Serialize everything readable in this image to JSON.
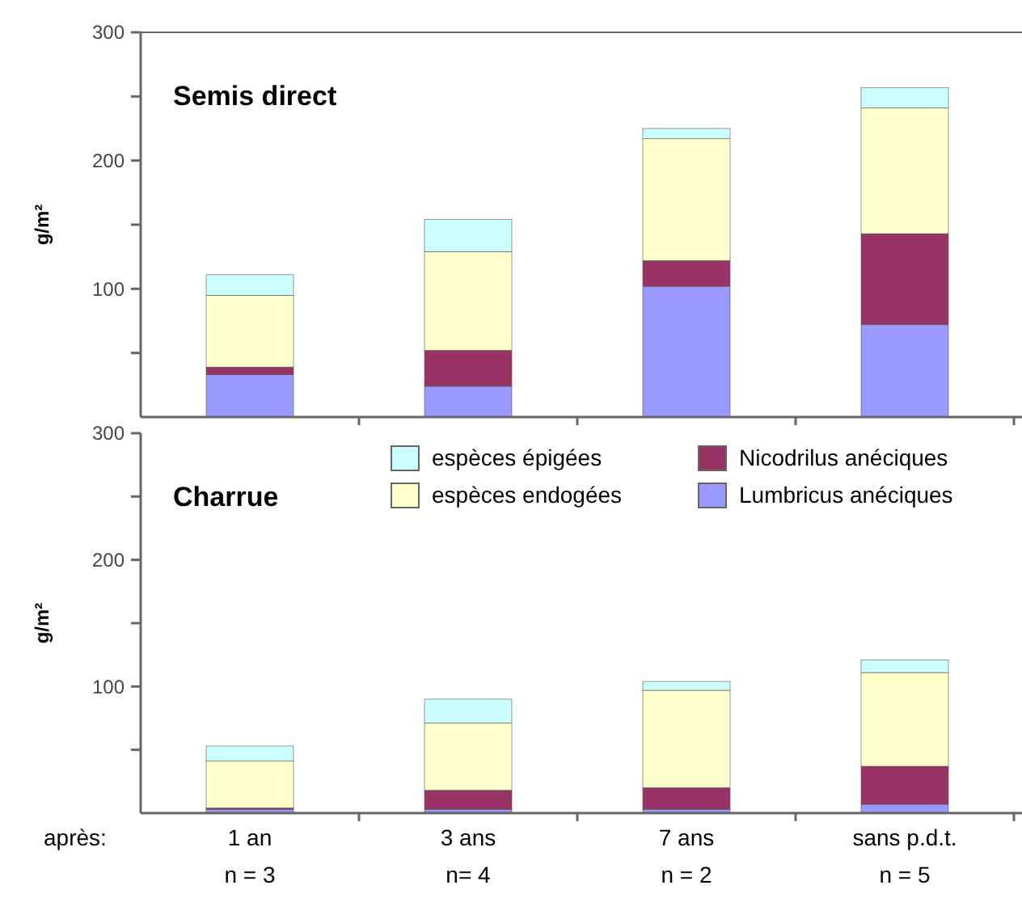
{
  "chart_data": [
    {
      "type": "bar",
      "stacked": true,
      "title": "Semis direct",
      "ylabel": "g/m²",
      "categories": [
        null,
        null,
        null,
        null
      ],
      "ylim": [
        0,
        300
      ],
      "yticks": [
        {
          "value": 50,
          "label": null
        },
        100,
        {
          "value": 150,
          "label": null
        },
        200,
        {
          "value": 250,
          "label": null
        },
        300
      ],
      "tick_labels": "y",
      "legend": false,
      "series": [
        {
          "color": "#9999ff",
          "values": [
            33,
            24,
            102,
            72
          ]
        },
        {
          "color": "#993366",
          "values": [
            6,
            28,
            20,
            71
          ]
        },
        {
          "color": "#ffffcc",
          "values": [
            56,
            77,
            95,
            98
          ]
        },
        {
          "color": "#ccffff",
          "values": [
            16,
            25,
            8,
            16
          ]
        }
      ]
    },
    {
      "type": "bar",
      "stacked": true,
      "title": "Charrue",
      "ylabel": "g/m²",
      "categories": [
        "1 an\nn = 3",
        "3 ans\nn= 4",
        "7 ans\nn = 2",
        "sans p.d.t.\nn = 5"
      ],
      "ylim": [
        0,
        300
      ],
      "yticks": [
        {
          "value": 50,
          "label": null
        },
        100,
        {
          "value": 150,
          "label": null
        },
        200,
        {
          "value": 250,
          "label": null
        },
        300
      ],
      "legend": "top right",
      "annotations": [
        "après:"
      ],
      "series": [
        {
          "name": "Lumbricus anéciques",
          "color": "#9999ff",
          "values": [
            3,
            3,
            3,
            7
          ]
        },
        {
          "name": "Nicodrilus anéciques",
          "color": "#993366",
          "values": [
            1,
            15,
            17,
            30
          ]
        },
        {
          "name": "espèces endogées",
          "color": "#ffffcc",
          "values": [
            37,
            53,
            77,
            74
          ]
        },
        {
          "name": "espèces épigées",
          "color": "#ccffff",
          "values": [
            12,
            19,
            7,
            10
          ]
        }
      ]
    }
  ]
}
